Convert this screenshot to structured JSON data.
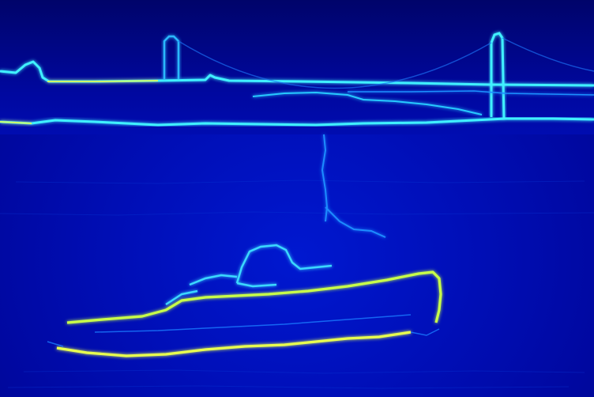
{
  "image": {
    "kind": "edge-detection heatmap",
    "colors": {
      "background": "#0010c0",
      "dim_edge": "#1a8cff",
      "mid_edge": "#33e0ff",
      "strong_edge": "#d8ff40"
    },
    "subjects": [
      "bridge",
      "shoreline",
      "tugboat"
    ]
  }
}
